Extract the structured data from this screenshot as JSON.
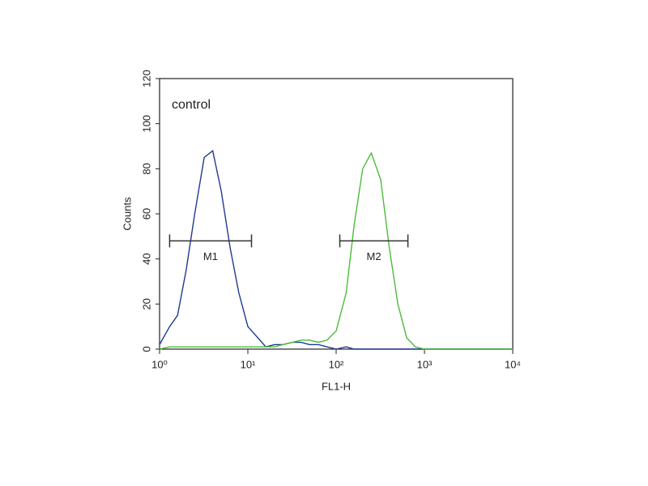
{
  "chart_data": {
    "type": "line",
    "annotation": "control",
    "xlabel": "FL1-H",
    "ylabel": "Counts",
    "xscale": "log",
    "xlim": [
      1,
      10000
    ],
    "xticks": [
      {
        "value": 1,
        "label": "10⁰"
      },
      {
        "value": 10,
        "label": "10¹"
      },
      {
        "value": 100,
        "label": "10²"
      },
      {
        "value": 1000,
        "label": "10³"
      },
      {
        "value": 10000,
        "label": "10⁴"
      }
    ],
    "ylim": [
      0,
      120
    ],
    "yticks": [
      0,
      20,
      40,
      60,
      80,
      100,
      120
    ],
    "x": [
      1,
      1.3,
      1.6,
      2,
      2.5,
      3.2,
      4,
      5,
      6.3,
      7.9,
      10,
      13,
      16,
      20,
      25,
      32,
      40,
      50,
      63,
      79,
      100,
      130,
      160,
      200,
      250,
      320,
      400,
      500,
      630,
      790,
      1000,
      1300,
      1600,
      2000,
      2500,
      3200,
      4000,
      5000,
      6300,
      7900,
      10000
    ],
    "series": [
      {
        "color": "#1f3a93",
        "values": [
          2,
          10,
          15,
          35,
          60,
          85,
          88,
          70,
          45,
          25,
          10,
          5,
          1,
          2,
          2,
          3,
          3,
          2,
          2,
          1,
          0,
          1,
          0,
          0,
          0,
          0,
          0,
          0,
          0,
          0,
          0,
          0,
          0,
          0,
          0,
          0,
          0,
          0,
          0,
          0,
          0
        ]
      },
      {
        "color": "#4cbb3a",
        "values": [
          0,
          1,
          1,
          1,
          1,
          1,
          1,
          1,
          1,
          1,
          1,
          1,
          1,
          1,
          2,
          3,
          4,
          4,
          3,
          4,
          8,
          25,
          55,
          80,
          87,
          75,
          45,
          20,
          5,
          1,
          0,
          0,
          0,
          0,
          0,
          0,
          0,
          0,
          0,
          0,
          0
        ]
      }
    ],
    "markers": [
      {
        "label": "M1",
        "range": [
          1.3,
          11
        ],
        "y": 48
      },
      {
        "label": "M2",
        "range": [
          110,
          650
        ],
        "y": 48
      }
    ]
  }
}
